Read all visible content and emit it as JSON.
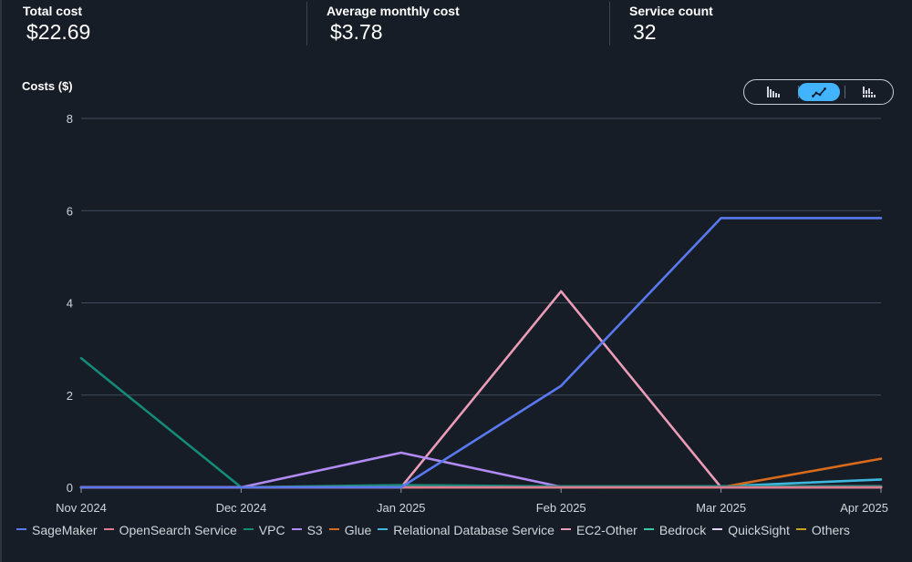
{
  "summary": {
    "total_cost": {
      "label": "Total cost",
      "value": "$22.69"
    },
    "average_monthly_cost": {
      "label": "Average monthly cost",
      "value": "$3.78"
    },
    "service_count": {
      "label": "Service count",
      "value": "32"
    }
  },
  "view_toggle": {
    "options": [
      "bar-chart-icon",
      "line-chart-icon",
      "stacked-bar-chart-icon"
    ],
    "selected": "line-chart-icon",
    "accent": "#42b4ff"
  },
  "chart_data": {
    "type": "line",
    "ylabel": "Costs ($)",
    "xlabel": "",
    "categories": [
      "Nov 2024",
      "Dec 2024",
      "Jan 2025",
      "Feb 2025",
      "Mar 2025",
      "Apr 2025"
    ],
    "ylim": [
      0,
      8
    ],
    "yticks": [
      0,
      2,
      4,
      6,
      8
    ],
    "grid": true,
    "legend_position": "bottom",
    "series": [
      {
        "name": "SageMaker",
        "color": "#5a79f0",
        "values": [
          0,
          0,
          0,
          2.2,
          5.84,
          5.84
        ]
      },
      {
        "name": "OpenSearch Service",
        "color": "#e07a8f",
        "values": [
          0,
          0,
          0,
          0,
          0,
          0
        ]
      },
      {
        "name": "VPC",
        "color": "#148a78",
        "values": [
          2.8,
          0,
          0.05,
          0.02,
          0.02,
          0.02
        ]
      },
      {
        "name": "S3",
        "color": "#b18af5",
        "values": [
          0,
          0,
          0.75,
          0.01,
          0.01,
          0.02
        ]
      },
      {
        "name": "Glue",
        "color": "#d86a1c",
        "values": [
          0,
          0,
          0,
          0,
          0,
          0.62
        ]
      },
      {
        "name": "Relational Database Service",
        "color": "#3fb8e0",
        "values": [
          0,
          0,
          0,
          0,
          0.02,
          0.17
        ]
      },
      {
        "name": "EC2-Other",
        "color": "#ea9cb7",
        "values": [
          0,
          0,
          0,
          4.25,
          0,
          0
        ]
      },
      {
        "name": "Bedrock",
        "color": "#3cc8a3",
        "values": [
          0,
          0,
          0.02,
          0.02,
          0.02,
          0.02
        ]
      },
      {
        "name": "QuickSight",
        "color": "#e6d4f7",
        "values": [
          0,
          0,
          0,
          0,
          0,
          0
        ]
      },
      {
        "name": "Others",
        "color": "#c9a11a",
        "values": [
          0,
          0,
          0,
          0.01,
          0.01,
          0.02
        ]
      }
    ]
  }
}
